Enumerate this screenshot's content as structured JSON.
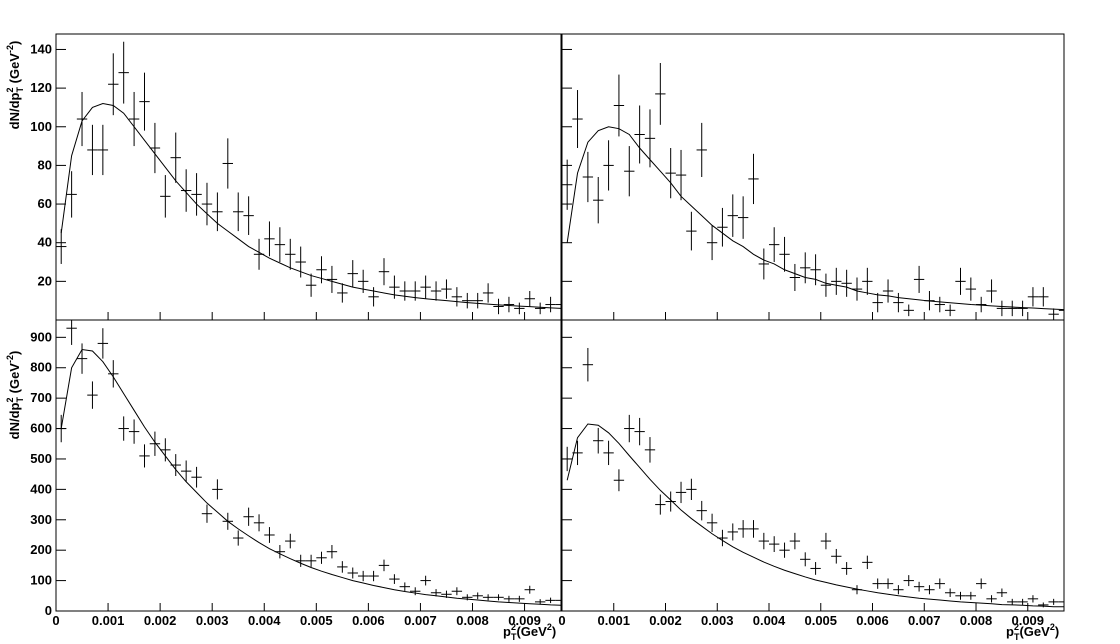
{
  "chart_data": [
    {
      "type": "errorbar",
      "ylabel": [
        "dN/dp",
        "2",
        "T",
        " (GeV",
        "-2",
        ")"
      ],
      "x": [
        0.0001,
        0.0003,
        0.0005,
        0.0007,
        0.0009,
        0.0011,
        0.0013,
        0.0015,
        0.0017,
        0.0019,
        0.0021,
        0.0023,
        0.0025,
        0.0027,
        0.0029,
        0.0031,
        0.0033,
        0.0035,
        0.0037,
        0.0039,
        0.0041,
        0.0043,
        0.0045,
        0.0047,
        0.0049,
        0.0051,
        0.0053,
        0.0055,
        0.0057,
        0.0059,
        0.0061,
        0.0063,
        0.0065,
        0.0067,
        0.0069,
        0.0071,
        0.0073,
        0.0075,
        0.0077,
        0.0079,
        0.0081,
        0.0083,
        0.0085,
        0.0087,
        0.0089,
        0.0091,
        0.0093,
        0.0095,
        0.0097
      ],
      "xerr": 0.0001,
      "values": [
        38,
        65,
        104,
        88,
        88,
        122,
        128,
        104,
        113,
        89,
        64,
        84,
        67,
        65,
        60,
        56,
        81,
        56,
        54,
        34,
        42,
        39,
        34,
        30,
        18,
        26,
        21,
        14,
        24,
        20,
        12,
        25,
        17,
        15,
        15,
        17,
        15,
        16,
        12,
        10,
        10,
        14,
        7,
        8,
        6,
        11,
        6,
        8,
        8
      ],
      "errors": [
        9,
        12,
        14,
        13,
        13,
        16,
        16,
        14,
        15,
        13,
        11,
        13,
        11,
        11,
        11,
        10,
        13,
        10,
        10,
        8,
        9,
        9,
        8,
        8,
        6,
        7,
        7,
        5,
        7,
        6,
        5,
        7,
        6,
        5,
        5,
        6,
        5,
        5,
        5,
        4,
        4,
        5,
        4,
        4,
        3,
        4,
        3,
        4,
        4
      ],
      "fit_values": [
        45,
        85,
        103,
        110,
        112,
        111,
        107,
        100,
        93,
        86,
        79,
        72,
        66,
        60,
        55,
        50,
        46,
        42,
        38,
        35,
        32,
        29.5,
        27,
        25,
        23,
        21.5,
        20,
        18.5,
        17,
        16,
        15,
        14,
        13,
        12.3,
        11.6,
        11,
        10.5,
        10,
        9.5,
        9,
        8.6,
        8.2,
        7.8,
        7.5,
        7.2,
        6.9,
        6.6,
        6.3,
        6
      ],
      "color": "#000000",
      "xlim": [
        0,
        0.0097
      ],
      "ylim": [
        0,
        148
      ],
      "xticks": [
        0,
        0.001,
        0.002,
        0.003,
        0.004,
        0.005,
        0.006,
        0.007,
        0.008,
        0.009
      ],
      "yticks": [
        20,
        40,
        60,
        80,
        100,
        120,
        140
      ],
      "x_tick_labels": false,
      "y_tick_labels": true
    },
    {
      "type": "errorbar",
      "x": [
        0.0001,
        0.0003,
        0.0005,
        0.0007,
        0.0009,
        0.0011,
        0.0013,
        0.0015,
        0.0017,
        0.0019,
        0.0021,
        0.0023,
        0.0025,
        0.0027,
        0.0029,
        0.0031,
        0.0033,
        0.0035,
        0.0037,
        0.0039,
        0.0041,
        0.0043,
        0.0045,
        0.0047,
        0.0049,
        0.0051,
        0.0053,
        0.0055,
        0.0057,
        0.0059,
        0.0061,
        0.0063,
        0.0065,
        0.0067,
        0.0069,
        0.0071,
        0.0073,
        0.0075,
        0.0077,
        0.0079,
        0.0081,
        0.0083,
        0.0085,
        0.0087,
        0.0089,
        0.0091,
        0.0093,
        0.0095,
        0.0097
      ],
      "xerr": 0.0001,
      "values": [
        70,
        104,
        74,
        62,
        80,
        111,
        77,
        96,
        94,
        117,
        76,
        75,
        46,
        88,
        40,
        48,
        54,
        53,
        73,
        29,
        39,
        34,
        22,
        27,
        26,
        18,
        20,
        19,
        16,
        20,
        9,
        15,
        9,
        5,
        21,
        10,
        8,
        5,
        20,
        16,
        8,
        15,
        6,
        6,
        6,
        12,
        12,
        3,
        5
      ],
      "errors": [
        13,
        15,
        13,
        12,
        13,
        16,
        13,
        15,
        15,
        16,
        13,
        13,
        10,
        14,
        9,
        10,
        11,
        11,
        13,
        8,
        9,
        9,
        7,
        8,
        8,
        6,
        7,
        7,
        6,
        7,
        5,
        6,
        5,
        3,
        7,
        5,
        4,
        3,
        7,
        6,
        4,
        6,
        4,
        4,
        4,
        5,
        5,
        3,
        3
      ],
      "fit_values": [
        40,
        76,
        92,
        98,
        100,
        99,
        96,
        89,
        83,
        77,
        71,
        64,
        59,
        54,
        49,
        45,
        41,
        38,
        34,
        31,
        29,
        26,
        24,
        22,
        21,
        19,
        18,
        17,
        15,
        14,
        13,
        12.5,
        11.6,
        11,
        10.4,
        9.8,
        9.4,
        8.9,
        8.5,
        8,
        7.7,
        7.3,
        7,
        6.7,
        6.4,
        6.2,
        5.9,
        5.6,
        5.4
      ],
      "color": "#000000",
      "xlim": [
        0,
        0.0097
      ],
      "ylim": [
        0,
        148
      ],
      "xticks": [
        0,
        0.001,
        0.002,
        0.003,
        0.004,
        0.005,
        0.006,
        0.007,
        0.008,
        0.009
      ],
      "yticks": [
        20,
        40,
        60,
        80,
        100,
        120,
        140
      ],
      "x_tick_labels": false,
      "y_tick_labels": false
    },
    {
      "type": "errorbar",
      "ylabel": [
        "dN/dp",
        "2",
        "T",
        " (GeV",
        "-2",
        ")"
      ],
      "xlabel": [
        "p",
        "2",
        "T",
        "(GeV",
        "2",
        ")"
      ],
      "x": [
        0.0001,
        0.0003,
        0.0005,
        0.0007,
        0.0009,
        0.0011,
        0.0013,
        0.0015,
        0.0017,
        0.0019,
        0.0021,
        0.0023,
        0.0025,
        0.0027,
        0.0029,
        0.0031,
        0.0033,
        0.0035,
        0.0037,
        0.0039,
        0.0041,
        0.0043,
        0.0045,
        0.0047,
        0.0049,
        0.0051,
        0.0053,
        0.0055,
        0.0057,
        0.0059,
        0.0061,
        0.0063,
        0.0065,
        0.0067,
        0.0069,
        0.0071,
        0.0073,
        0.0075,
        0.0077,
        0.0079,
        0.0081,
        0.0083,
        0.0085,
        0.0087,
        0.0089,
        0.0091,
        0.0093,
        0.0095,
        0.0097
      ],
      "xerr": 0.0001,
      "values": [
        600,
        930,
        830,
        710,
        880,
        780,
        600,
        590,
        510,
        550,
        530,
        480,
        460,
        440,
        320,
        400,
        295,
        240,
        310,
        290,
        250,
        195,
        230,
        165,
        165,
        175,
        195,
        145,
        125,
        115,
        115,
        150,
        105,
        80,
        65,
        100,
        60,
        55,
        65,
        45,
        50,
        45,
        45,
        40,
        40,
        70,
        30,
        35,
        35
      ],
      "errors": [
        45,
        55,
        50,
        45,
        50,
        45,
        40,
        40,
        38,
        40,
        38,
        36,
        35,
        34,
        30,
        33,
        28,
        25,
        30,
        28,
        26,
        22,
        24,
        20,
        20,
        20,
        22,
        19,
        18,
        17,
        17,
        19,
        16,
        14,
        13,
        16,
        12,
        12,
        13,
        10,
        11,
        10,
        10,
        10,
        10,
        13,
        9,
        9,
        9
      ],
      "fit_values": [
        600,
        800,
        860,
        855,
        820,
        770,
        715,
        660,
        605,
        555,
        510,
        465,
        425,
        390,
        355,
        325,
        295,
        270,
        247,
        225,
        205,
        188,
        172,
        157,
        143,
        131,
        120,
        110,
        100,
        92,
        84,
        77,
        70,
        64,
        59,
        54,
        50,
        46,
        42,
        39,
        36,
        33,
        30,
        28,
        26,
        24,
        22,
        20,
        19
      ],
      "color": "#000000",
      "xlim": [
        0,
        0.0097
      ],
      "ylim": [
        0,
        957
      ],
      "xticks": [
        0,
        0.001,
        0.002,
        0.003,
        0.004,
        0.005,
        0.006,
        0.007,
        0.008,
        0.009
      ],
      "yticks": [
        0,
        100,
        200,
        300,
        400,
        500,
        600,
        700,
        800,
        900
      ],
      "x_tick_labels": true,
      "y_tick_labels": true
    },
    {
      "type": "errorbar",
      "xlabel": [
        "p",
        "2",
        "T",
        "(GeV",
        "2",
        ")"
      ],
      "x": [
        0.0001,
        0.0003,
        0.0005,
        0.0007,
        0.0009,
        0.0011,
        0.0013,
        0.0015,
        0.0017,
        0.0019,
        0.0021,
        0.0023,
        0.0025,
        0.0027,
        0.0029,
        0.0031,
        0.0033,
        0.0035,
        0.0037,
        0.0039,
        0.0041,
        0.0043,
        0.0045,
        0.0047,
        0.0049,
        0.0051,
        0.0053,
        0.0055,
        0.0057,
        0.0059,
        0.0061,
        0.0063,
        0.0065,
        0.0067,
        0.0069,
        0.0071,
        0.0073,
        0.0075,
        0.0077,
        0.0079,
        0.0081,
        0.0083,
        0.0085,
        0.0087,
        0.0089,
        0.0091,
        0.0093,
        0.0095,
        0.0097
      ],
      "xerr": 0.0001,
      "values": [
        500,
        520,
        810,
        560,
        520,
        430,
        600,
        590,
        530,
        350,
        360,
        390,
        400,
        330,
        290,
        240,
        260,
        270,
        270,
        230,
        220,
        200,
        230,
        170,
        140,
        230,
        180,
        140,
        70,
        160,
        90,
        90,
        70,
        100,
        80,
        70,
        90,
        60,
        50,
        50,
        90,
        40,
        60,
        30,
        30,
        40,
        20,
        30,
        30
      ],
      "errors": [
        40,
        40,
        55,
        42,
        40,
        36,
        45,
        45,
        42,
        33,
        33,
        35,
        35,
        32,
        30,
        27,
        28,
        29,
        29,
        27,
        26,
        25,
        27,
        23,
        21,
        27,
        24,
        21,
        15,
        22,
        17,
        17,
        15,
        18,
        16,
        15,
        17,
        14,
        13,
        13,
        17,
        12,
        14,
        10,
        10,
        12,
        8,
        10,
        10
      ],
      "fit_values": [
        430,
        570,
        615,
        611,
        586,
        551,
        511,
        472,
        433,
        397,
        365,
        332,
        304,
        279,
        254,
        232,
        211,
        193,
        177,
        161,
        147,
        134,
        123,
        112,
        102,
        94,
        86,
        79,
        72,
        66,
        60,
        55,
        50,
        46,
        42,
        39,
        36,
        33,
        30,
        28,
        26,
        24,
        21,
        20,
        19,
        17,
        16,
        14,
        14
      ],
      "color": "#000000",
      "xlim": [
        0,
        0.0097
      ],
      "ylim": [
        0,
        957
      ],
      "xticks": [
        0,
        0.001,
        0.002,
        0.003,
        0.004,
        0.005,
        0.006,
        0.007,
        0.008,
        0.009
      ],
      "yticks": [
        0,
        100,
        200,
        300,
        400,
        500,
        600,
        700,
        800,
        900
      ],
      "x_tick_labels": true,
      "y_tick_labels": false
    }
  ]
}
